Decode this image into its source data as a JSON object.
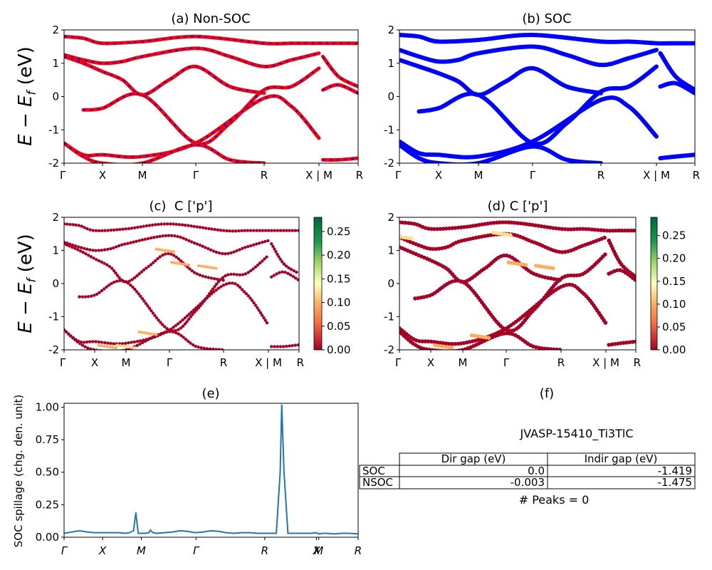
{
  "figure": {
    "band_ylabel": "E − E_f (eV)",
    "band_ylabel_main": "E − E",
    "band_ylabel_sub": "f",
    "band_ylabel_unit": " (eV)"
  },
  "chart_data": [
    {
      "panel": "a",
      "type": "line",
      "title": "(a) Non-SOC",
      "xlabel": "",
      "ylabel": "E − E_f (eV)",
      "ylim": [
        -2,
        2
      ],
      "yticks": [
        -2,
        -1,
        0,
        1,
        2
      ],
      "kpath": [
        "Γ",
        "X",
        "M",
        "Γ",
        "R",
        "X | M",
        "R"
      ],
      "series_colors": [
        "#ff0000",
        "#0000ff"
      ],
      "bands": [
        {
          "x": [
            0,
            0.5,
            1,
            2,
            3,
            4,
            4.5,
            5,
            5.5,
            6
          ],
          "y": [
            1.8,
            1.75,
            1.6,
            1.65,
            1.8,
            1.6,
            1.6,
            1.6,
            1.6,
            1.6
          ]
        },
        {
          "x": [
            0,
            0.5,
            1,
            1.5,
            2,
            3,
            3.5,
            4,
            4.5,
            5
          ],
          "y": [
            1.25,
            1.1,
            1.0,
            1.05,
            1.2,
            1.45,
            1.2,
            0.9,
            1.1,
            1.3
          ]
        },
        {
          "x": [
            0,
            0.5,
            1,
            1.5,
            2,
            2.5,
            3,
            3.5,
            4
          ],
          "y": [
            1.2,
            1.0,
            0.75,
            0.5,
            0.05,
            0.5,
            0.9,
            0.3,
            0.1
          ]
        },
        {
          "x": [
            0.5,
            1,
            2,
            3,
            3.5,
            4,
            4.5,
            5
          ],
          "y": [
            -0.4,
            -0.35,
            0.05,
            -1.4,
            -0.8,
            0.2,
            0.3,
            0.85
          ]
        },
        {
          "x": [
            0,
            0.5,
            1,
            2,
            3,
            4,
            4.5,
            5
          ],
          "y": [
            -1.4,
            -1.75,
            -1.75,
            -1.8,
            -1.4,
            -0.05,
            -0.3,
            -1.25
          ]
        },
        {
          "x": [
            0,
            0.5,
            1,
            2,
            3,
            3.5,
            4
          ],
          "y": [
            -1.4,
            -1.8,
            -2.0,
            -2.0,
            -1.45,
            -1.9,
            -2.0
          ]
        },
        {
          "x": [
            5.1,
            5.5,
            6
          ],
          "y": [
            1.2,
            0.6,
            0.3
          ]
        },
        {
          "x": [
            5.1,
            5.5,
            6
          ],
          "y": [
            0.2,
            0.35,
            0.1
          ]
        },
        {
          "x": [
            5.1,
            5.5,
            6
          ],
          "y": [
            -1.9,
            -1.9,
            -1.85
          ]
        }
      ]
    },
    {
      "panel": "b",
      "type": "line",
      "title": "(b) SOC",
      "xlabel": "",
      "ylabel": "",
      "ylim": [
        -2,
        2
      ],
      "yticks": [
        -2,
        -1,
        0,
        1,
        2
      ],
      "kpath": [
        "Γ",
        "X",
        "M",
        "Γ",
        "R",
        "X | M",
        "R"
      ],
      "series_colors": [
        "#0000ff"
      ],
      "bands": [
        {
          "x": [
            0,
            0.5,
            1,
            2,
            3,
            4,
            4.5,
            5,
            5.5,
            6
          ],
          "y": [
            1.85,
            1.8,
            1.65,
            1.7,
            1.85,
            1.65,
            1.65,
            1.6,
            1.6,
            1.6
          ]
        },
        {
          "x": [
            0,
            0.5,
            1,
            1.5,
            2,
            3,
            3.5,
            4,
            4.5,
            5
          ],
          "y": [
            1.4,
            1.2,
            1.05,
            1.1,
            1.3,
            1.5,
            1.25,
            0.95,
            1.15,
            1.4
          ]
        },
        {
          "x": [
            0,
            0.5,
            1,
            1.5,
            2,
            2.5,
            3,
            3.5,
            4
          ],
          "y": [
            1.1,
            0.9,
            0.7,
            0.45,
            0.05,
            0.45,
            0.85,
            0.3,
            0.1
          ]
        },
        {
          "x": [
            0.5,
            1,
            2,
            3,
            3.5,
            4,
            4.5,
            5
          ],
          "y": [
            -0.45,
            -0.35,
            0.05,
            -1.4,
            -0.8,
            0.15,
            0.3,
            0.9
          ]
        },
        {
          "x": [
            0,
            0.5,
            1,
            2,
            3,
            4,
            4.5,
            5
          ],
          "y": [
            -1.35,
            -1.7,
            -1.75,
            -1.8,
            -1.35,
            -0.1,
            -0.3,
            -1.2
          ]
        },
        {
          "x": [
            0,
            0.5,
            1,
            2,
            3,
            3.5,
            4
          ],
          "y": [
            -1.45,
            -1.85,
            -2.0,
            -2.0,
            -1.5,
            -1.9,
            -2.0
          ]
        },
        {
          "x": [
            5.1,
            5.5,
            6
          ],
          "y": [
            1.3,
            0.6,
            0.2
          ]
        },
        {
          "x": [
            5.1,
            5.5,
            6
          ],
          "y": [
            0.3,
            0.4,
            0.1
          ]
        },
        {
          "x": [
            5.1,
            5.5,
            6
          ],
          "y": [
            -1.85,
            -1.8,
            -1.75
          ]
        }
      ]
    },
    {
      "panel": "c",
      "type": "scatter",
      "title": "(c)  C ['p']",
      "xlabel": "",
      "ylabel": "E − E_f (eV)",
      "ylim": [
        -2,
        2
      ],
      "yticks": [
        -2,
        -1,
        0,
        1,
        2
      ],
      "kpath": [
        "Γ",
        "X",
        "M",
        "Γ",
        "R",
        "X | M",
        "R"
      ],
      "colorbar": {
        "ticks": [
          "0.00",
          "0.05",
          "0.10",
          "0.15",
          "0.20",
          "0.25"
        ],
        "min": 0,
        "max": 0.28
      },
      "highlight": [
        {
          "x": 3.2,
          "y": 0.6,
          "w": 0.12
        },
        {
          "x": 3.7,
          "y": 0.5,
          "w": 0.1
        },
        {
          "x": 2.5,
          "y": -1.5,
          "w": 0.1
        },
        {
          "x": 2.0,
          "y": -1.9,
          "w": 0.15
        },
        {
          "x": 1.4,
          "y": -1.9,
          "w": 0.12
        },
        {
          "x": 2.9,
          "y": 1.0,
          "w": 0.09
        }
      ]
    },
    {
      "panel": "d",
      "type": "scatter",
      "title": "(d) C ['p']",
      "xlabel": "",
      "ylabel": "",
      "ylim": [
        -2,
        2
      ],
      "yticks": [
        -2,
        -1,
        0,
        1,
        2
      ],
      "kpath": [
        "Γ",
        "X",
        "M",
        "Γ",
        "R",
        "X | M",
        "R"
      ],
      "colorbar": {
        "ticks": [
          "0.00",
          "0.05",
          "0.10",
          "0.15",
          "0.20",
          "0.25"
        ],
        "min": 0,
        "max": 0.29
      },
      "highlight": [
        {
          "x": 3.2,
          "y": 0.6,
          "w": 0.12
        },
        {
          "x": 3.7,
          "y": 0.5,
          "w": 0.1
        },
        {
          "x": 0.1,
          "y": 1.4,
          "w": 0.18
        },
        {
          "x": 2.9,
          "y": 1.5,
          "w": 0.15
        },
        {
          "x": 2.4,
          "y": -1.6,
          "w": 0.1
        },
        {
          "x": 1.4,
          "y": -1.9,
          "w": 0.12
        }
      ]
    },
    {
      "panel": "e",
      "type": "line",
      "title": "(e)",
      "xlabel": "",
      "ylabel": "SOC spillage (chg. den. unit)",
      "ylim": [
        0,
        1.03
      ],
      "yticks": [
        "0.00",
        "0.25",
        "0.50",
        "0.75",
        "1.00"
      ],
      "xticks": [
        "Γ",
        "X",
        "M",
        "Γ",
        "R",
        "X",
        "M",
        "R"
      ],
      "xtick_pos": [
        0,
        0.5,
        1.0,
        1.71,
        2.6,
        3.27,
        3.3,
        3.81
      ],
      "series_color": "#1f77b4",
      "x": [
        0,
        0.1,
        0.2,
        0.3,
        0.4,
        0.5,
        0.6,
        0.7,
        0.8,
        0.85,
        0.9,
        0.93,
        0.96,
        1.0,
        1.05,
        1.1,
        1.12,
        1.15,
        1.2,
        1.3,
        1.4,
        1.5,
        1.6,
        1.7,
        1.8,
        1.9,
        2.0,
        2.1,
        2.2,
        2.3,
        2.4,
        2.5,
        2.6,
        2.7,
        2.75,
        2.8,
        2.82,
        2.85,
        2.9,
        3.0,
        3.1,
        3.2,
        3.27,
        3.3,
        3.35,
        3.4,
        3.5,
        3.6,
        3.7,
        3.81
      ],
      "y": [
        0.03,
        0.04,
        0.05,
        0.04,
        0.035,
        0.035,
        0.035,
        0.035,
        0.03,
        0.035,
        0.05,
        0.19,
        0.03,
        0.03,
        0.03,
        0.035,
        0.055,
        0.035,
        0.03,
        0.035,
        0.04,
        0.05,
        0.045,
        0.035,
        0.04,
        0.05,
        0.045,
        0.035,
        0.03,
        0.035,
        0.035,
        0.03,
        0.03,
        0.03,
        0.03,
        0.5,
        1.02,
        0.5,
        0.03,
        0.03,
        0.03,
        0.03,
        0.035,
        0.025,
        0.03,
        0.03,
        0.025,
        0.03,
        0.03,
        0.025
      ]
    },
    {
      "panel": "f",
      "type": "table",
      "title": "(f)",
      "subtitle": "JVASP-15410_Ti3TlC",
      "columns": [
        "Dir gap (eV)",
        "Indir gap (eV)"
      ],
      "rows": [
        {
          "label": "SOC",
          "dir": "0.0",
          "indir": "-1.419"
        },
        {
          "label": "NSOC",
          "dir": "-0.003",
          "indir": "-1.475"
        }
      ],
      "footer": "# Peaks = 0"
    }
  ]
}
